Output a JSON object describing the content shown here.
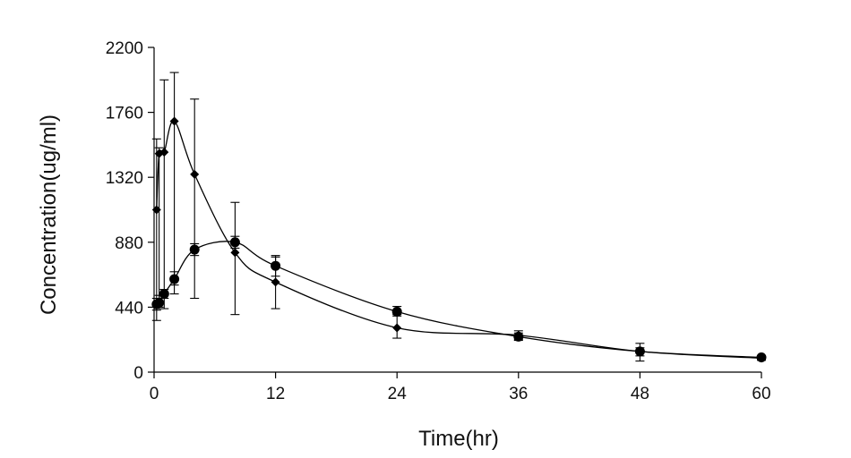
{
  "chart_data": {
    "type": "line",
    "xlabel": "Time(hr)",
    "ylabel": "Concentration(ug/ml)",
    "xlim": [
      0,
      60
    ],
    "ylim": [
      0,
      2200
    ],
    "xticks": [
      "0",
      "12",
      "24",
      "36",
      "48",
      "60"
    ],
    "yticks": [
      "0",
      "440",
      "880",
      "1320",
      "1760",
      "2200"
    ],
    "grid": false,
    "series": [
      {
        "marker": "diamond",
        "x": [
          0.25,
          0.5,
          1,
          2,
          4,
          8,
          12,
          24,
          36,
          48,
          60
        ],
        "y": [
          1100,
          1480,
          1490,
          1700,
          1340,
          810,
          610,
          300,
          250,
          140,
          95
        ],
        "err_upper": [
          1580,
          1520,
          1980,
          2030,
          1850,
          1150,
          780,
          390,
          280,
          195,
          110
        ],
        "err_lower": [
          350,
          440,
          430,
          530,
          500,
          390,
          430,
          230,
          220,
          75,
          80
        ]
      },
      {
        "marker": "circle",
        "x": [
          0.25,
          0.5,
          1,
          2,
          4,
          8,
          12,
          24,
          36,
          48,
          60
        ],
        "y": [
          460,
          470,
          530,
          630,
          830,
          880,
          720,
          410,
          240,
          140,
          100
        ],
        "err_upper": [
          500,
          520,
          560,
          680,
          870,
          920,
          790,
          445,
          265,
          165,
          110
        ],
        "err_lower": [
          420,
          430,
          500,
          590,
          790,
          840,
          650,
          380,
          215,
          110,
          90
        ]
      }
    ]
  }
}
